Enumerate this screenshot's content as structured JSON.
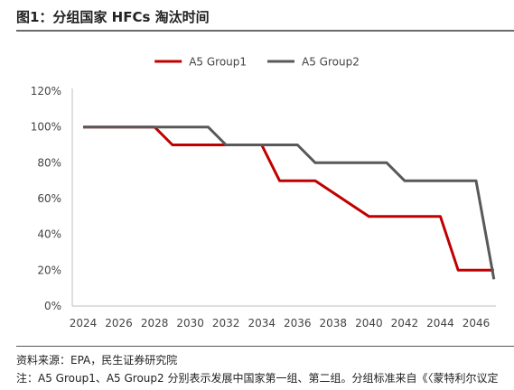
{
  "header": {
    "title": "图1：分组国家 HFCs 淘汰时间"
  },
  "footer": {
    "source": "资料来源：EPA，民生证券研究院",
    "note": "注：A5 Group1、A5 Group2 分别表示发展中国家第一组、第二组。分组标准来自《〈蒙特利尔议定"
  },
  "chart_data": {
    "type": "line",
    "x": [
      2024,
      2028,
      2029,
      2031,
      2032,
      2034,
      2035,
      2036,
      2037,
      2040,
      2041,
      2042,
      2044,
      2045,
      2046,
      2047
    ],
    "series": [
      {
        "name": "A5 Group1",
        "color": "#c00000",
        "values": [
          100,
          100,
          90,
          90,
          90,
          90,
          70,
          70,
          70,
          50,
          50,
          50,
          50,
          20,
          20,
          20
        ]
      },
      {
        "name": "A5 Group2",
        "color": "#595959",
        "values": [
          100,
          100,
          100,
          100,
          90,
          90,
          90,
          90,
          80,
          80,
          80,
          70,
          70,
          70,
          70,
          15
        ]
      }
    ],
    "xticks": [
      "2024",
      "2026",
      "2028",
      "2030",
      "2032",
      "2034",
      "2036",
      "2038",
      "2040",
      "2042",
      "2044",
      "2046"
    ],
    "yticks": [
      "0%",
      "20%",
      "40%",
      "60%",
      "80%",
      "100%",
      "120%"
    ],
    "xlim": [
      2024,
      2046
    ],
    "ylim": [
      0,
      120
    ],
    "grid": false,
    "legend_position": "top-center"
  }
}
